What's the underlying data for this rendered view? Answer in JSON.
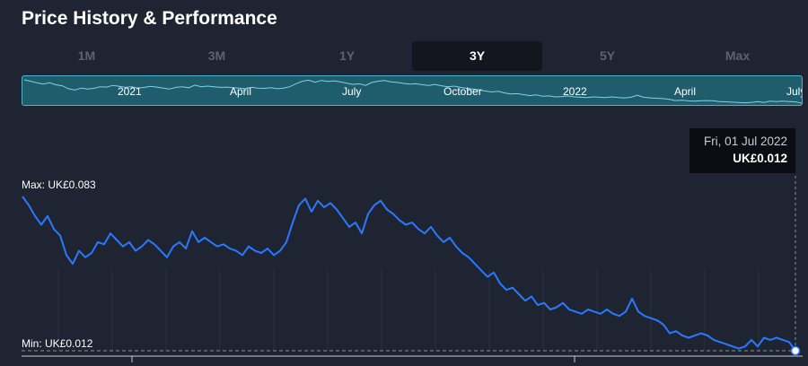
{
  "header": {
    "title": "Price History & Performance"
  },
  "tabs": [
    {
      "label": "1M",
      "active": false
    },
    {
      "label": "3M",
      "active": false
    },
    {
      "label": "1Y",
      "active": false
    },
    {
      "label": "3Y",
      "active": true
    },
    {
      "label": "5Y",
      "active": false
    },
    {
      "label": "Max",
      "active": false
    }
  ],
  "navigator": {
    "labels": [
      "2021",
      "April",
      "July",
      "October",
      "2022",
      "April",
      "July"
    ]
  },
  "tooltip": {
    "date": "Fri, 01 Jul 2022",
    "price": "UK£0.012"
  },
  "extremes": {
    "max_label": "Max: UK£0.083",
    "min_label": "Min: UK£0.012"
  },
  "colors": {
    "line": "#2979ff",
    "navigator_fill": "#1f5d6d",
    "navigator_line": "#7fd3e6",
    "background": "#1f2432"
  },
  "chart_data": {
    "type": "line",
    "ylim": [
      0.012,
      0.083
    ],
    "series": [
      {
        "values": [
          0.083,
          0.079,
          0.074,
          0.07,
          0.074,
          0.068,
          0.065,
          0.056,
          0.052,
          0.058,
          0.055,
          0.057,
          0.062,
          0.061,
          0.066,
          0.063,
          0.06,
          0.062,
          0.058,
          0.06,
          0.063,
          0.061,
          0.058,
          0.055,
          0.06,
          0.062,
          0.059,
          0.067,
          0.062,
          0.064,
          0.062,
          0.06,
          0.061,
          0.059,
          0.058,
          0.056,
          0.06,
          0.058,
          0.057,
          0.059,
          0.056,
          0.058,
          0.062,
          0.071,
          0.079,
          0.082,
          0.076,
          0.081,
          0.078,
          0.08,
          0.077,
          0.073,
          0.069,
          0.071,
          0.066,
          0.075,
          0.079,
          0.081,
          0.077,
          0.075,
          0.072,
          0.07,
          0.071,
          0.068,
          0.066,
          0.069,
          0.065,
          0.062,
          0.064,
          0.06,
          0.057,
          0.055,
          0.052,
          0.049,
          0.046,
          0.048,
          0.043,
          0.04,
          0.041,
          0.038,
          0.035,
          0.037,
          0.033,
          0.034,
          0.031,
          0.032,
          0.034,
          0.031,
          0.03,
          0.029,
          0.031,
          0.03,
          0.029,
          0.031,
          0.029,
          0.028,
          0.03,
          0.036,
          0.03,
          0.028,
          0.027,
          0.026,
          0.024,
          0.02,
          0.021,
          0.019,
          0.018,
          0.019,
          0.02,
          0.019,
          0.017,
          0.016,
          0.015,
          0.014,
          0.013,
          0.014,
          0.017,
          0.014,
          0.018,
          0.017,
          0.018,
          0.017,
          0.016,
          0.012
        ]
      }
    ]
  }
}
